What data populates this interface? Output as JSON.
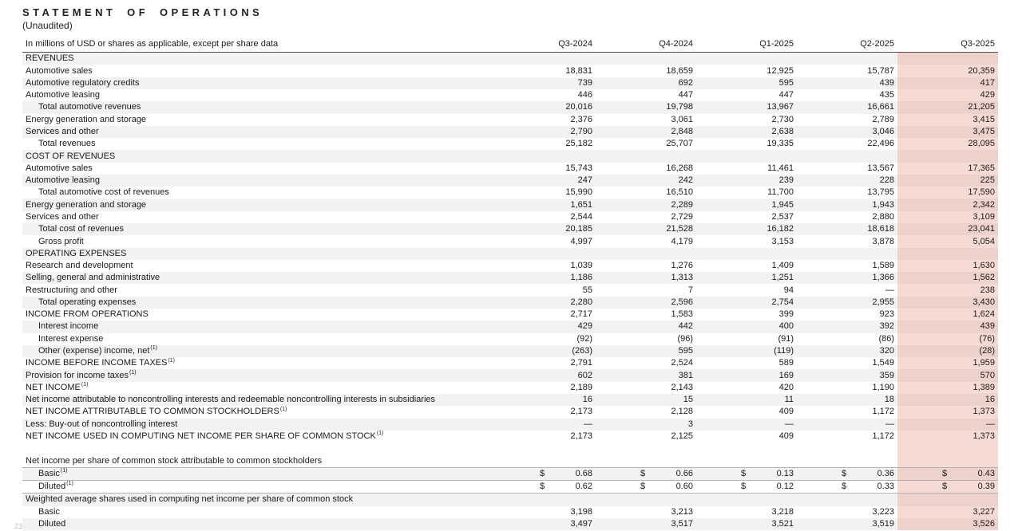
{
  "page": {
    "title": "STATEMENT OF OPERATIONS",
    "subtitle": "(Unaudited)",
    "page_number": "23"
  },
  "table": {
    "label_header": "In millions of USD or shares as applicable, except per share data",
    "columns": [
      "Q3-2024",
      "Q4-2024",
      "Q1-2025",
      "Q2-2025",
      "Q3-2025"
    ],
    "currency_symbol": "$",
    "highlight_color": "#f6dbd5",
    "stripe_color": "#f2f2f2",
    "rows": [
      {
        "label": "REVENUES",
        "section": true
      },
      {
        "label": "Automotive sales",
        "values": [
          "18,831",
          "18,659",
          "12,925",
          "15,787",
          "20,359"
        ]
      },
      {
        "label": "Automotive regulatory credits",
        "values": [
          "739",
          "692",
          "595",
          "439",
          "417"
        ]
      },
      {
        "label": "Automotive leasing",
        "values": [
          "446",
          "447",
          "447",
          "435",
          "429"
        ]
      },
      {
        "label": "Total automotive revenues",
        "indent": true,
        "values": [
          "20,016",
          "19,798",
          "13,967",
          "16,661",
          "21,205"
        ]
      },
      {
        "label": "Energy generation and storage",
        "values": [
          "2,376",
          "3,061",
          "2,730",
          "2,789",
          "3,415"
        ]
      },
      {
        "label": "Services and other",
        "values": [
          "2,790",
          "2,848",
          "2,638",
          "3,046",
          "3,475"
        ]
      },
      {
        "label": "Total revenues",
        "indent": true,
        "bold": true,
        "values": [
          "25,182",
          "25,707",
          "19,335",
          "22,496",
          "28,095"
        ]
      },
      {
        "label": "COST OF REVENUES",
        "section": true
      },
      {
        "label": "Automotive sales",
        "values": [
          "15,743",
          "16,268",
          "11,461",
          "13,567",
          "17,365"
        ]
      },
      {
        "label": "Automotive leasing",
        "values": [
          "247",
          "242",
          "239",
          "228",
          "225"
        ]
      },
      {
        "label": "Total automotive cost of revenues",
        "indent": true,
        "values": [
          "15,990",
          "16,510",
          "11,700",
          "13,795",
          "17,590"
        ]
      },
      {
        "label": "Energy generation and storage",
        "values": [
          "1,651",
          "2,289",
          "1,945",
          "1,943",
          "2,342"
        ]
      },
      {
        "label": "Services and other",
        "values": [
          "2,544",
          "2,729",
          "2,537",
          "2,880",
          "3,109"
        ]
      },
      {
        "label": "Total cost of revenues",
        "indent": true,
        "values": [
          "20,185",
          "21,528",
          "16,182",
          "18,618",
          "23,041"
        ]
      },
      {
        "label": "Gross profit",
        "indent": true,
        "bold": true,
        "values": [
          "4,997",
          "4,179",
          "3,153",
          "3,878",
          "5,054"
        ]
      },
      {
        "label": "OPERATING EXPENSES",
        "section": true
      },
      {
        "label": "Research and development",
        "values": [
          "1,039",
          "1,276",
          "1,409",
          "1,589",
          "1,630"
        ]
      },
      {
        "label": "Selling, general and administrative",
        "values": [
          "1,186",
          "1,313",
          "1,251",
          "1,366",
          "1,562"
        ]
      },
      {
        "label": "Restructuring and other",
        "values": [
          "55",
          "7",
          "94",
          "—",
          "238"
        ]
      },
      {
        "label": "Total operating expenses",
        "indent": true,
        "values": [
          "2,280",
          "2,596",
          "2,754",
          "2,955",
          "3,430"
        ]
      },
      {
        "label": "INCOME FROM OPERATIONS",
        "bold": true,
        "values": [
          "2,717",
          "1,583",
          "399",
          "923",
          "1,624"
        ]
      },
      {
        "label": "Interest income",
        "indent": true,
        "values": [
          "429",
          "442",
          "400",
          "392",
          "439"
        ]
      },
      {
        "label": "Interest expense",
        "indent": true,
        "values": [
          "(92)",
          "(96)",
          "(91)",
          "(86)",
          "(76)"
        ]
      },
      {
        "label": "Other (expense) income, net",
        "sup": "(1)",
        "indent": true,
        "values": [
          "(263)",
          "595",
          "(119)",
          "320",
          "(28)"
        ]
      },
      {
        "label": "INCOME BEFORE INCOME TAXES",
        "sup": "(1)",
        "values": [
          "2,791",
          "2,524",
          "589",
          "1,549",
          "1,959"
        ]
      },
      {
        "label": "Provision for income taxes",
        "sup": "(1)",
        "values": [
          "602",
          "381",
          "169",
          "359",
          "570"
        ]
      },
      {
        "label": "NET INCOME",
        "sup": "(1)",
        "values": [
          "2,189",
          "2,143",
          "420",
          "1,190",
          "1,389"
        ]
      },
      {
        "label": "Net income attributable to noncontrolling interests and redeemable noncontrolling interests in subsidiaries",
        "values": [
          "16",
          "15",
          "11",
          "18",
          "16"
        ]
      },
      {
        "label": "NET INCOME ATTRIBUTABLE TO COMMON STOCKHOLDERS",
        "sup": "(1)",
        "bold": true,
        "values": [
          "2,173",
          "2,128",
          "409",
          "1,172",
          "1,373"
        ]
      },
      {
        "label": "Less: Buy-out of noncontrolling interest",
        "values": [
          "—",
          "3",
          "—",
          "—",
          "—"
        ]
      },
      {
        "label": "NET INCOME USED IN COMPUTING NET INCOME PER SHARE OF COMMON STOCK",
        "sup": "(1)",
        "values": [
          "2,173",
          "2,125",
          "409",
          "1,172",
          "1,373"
        ]
      },
      {
        "label": "",
        "blank": true
      },
      {
        "label": "Net income per share of common stock attributable to common stockholders"
      },
      {
        "label": "Basic",
        "sup": "(1)",
        "indent": true,
        "currency": true,
        "rule_above": true,
        "values": [
          "0.68",
          "0.66",
          "0.13",
          "0.36",
          "0.43"
        ]
      },
      {
        "label": "Diluted",
        "sup": "(1)",
        "indent": true,
        "currency": true,
        "rule_above": true,
        "rule_below": true,
        "values": [
          "0.62",
          "0.60",
          "0.12",
          "0.33",
          "0.39"
        ]
      },
      {
        "label": "Weighted average shares used in computing net income per share of common stock"
      },
      {
        "label": "Basic",
        "indent": true,
        "values": [
          "3,198",
          "3,213",
          "3,218",
          "3,223",
          "3,227"
        ]
      },
      {
        "label": "Diluted",
        "indent": true,
        "values": [
          "3,497",
          "3,517",
          "3,521",
          "3,519",
          "3,526"
        ]
      }
    ]
  }
}
